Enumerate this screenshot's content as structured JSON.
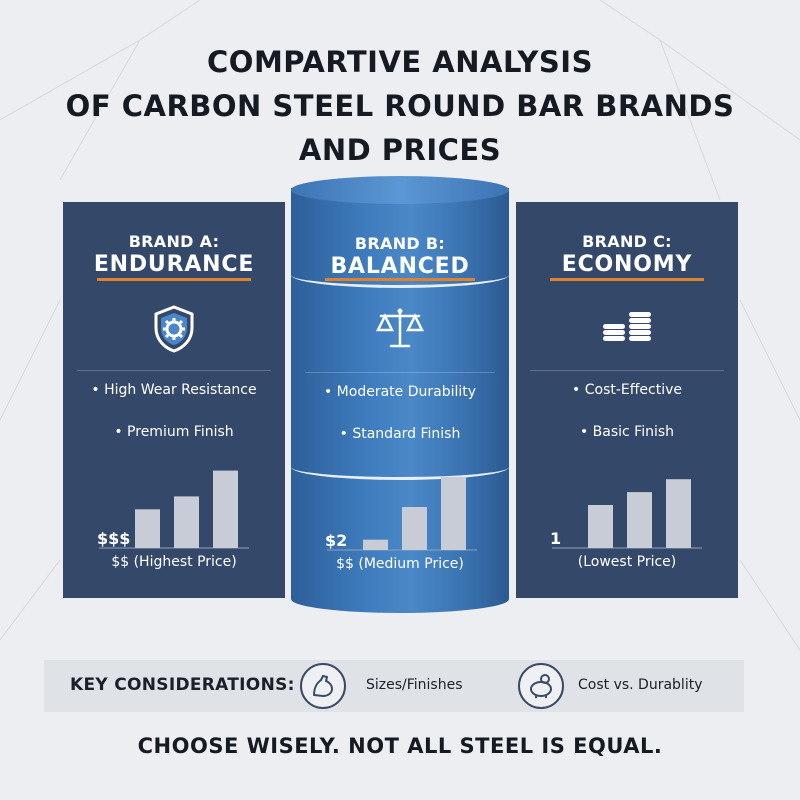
{
  "title_lines": [
    "COMPARTIVE ANALYSIS",
    "OF CARBON STEEL ROUND BAR BRANDS",
    "AND PRICES"
  ],
  "brands": [
    {
      "name": "BRAND A:",
      "tag": "ENDURANCE",
      "icon": "shield-gear-icon",
      "features": [
        "• High Wear Resistance",
        "• Premium Finish"
      ],
      "price_symbol": "$$$",
      "price_label": "$$ (Highest Price)",
      "bar_levels": [
        0.45,
        0.6,
        0.9
      ]
    },
    {
      "name": "BRAND B:",
      "tag": "BALANCED",
      "icon": "scale-icon",
      "features": [
        "• Moderate Durability",
        "• Standard Finish"
      ],
      "price_symbol": "$2",
      "price_label": "$$ (Medium Price)",
      "bar_levels": [
        0.12,
        0.5,
        0.85
      ]
    },
    {
      "name": "BRAND C:",
      "tag": "ECONOMY",
      "icon": "coin-stacks-icon",
      "features": [
        "• Cost-Effective",
        "• Basic Finish"
      ],
      "price_symbol": "1",
      "price_label": "(Lowest Price)",
      "bar_levels": [
        0.5,
        0.65,
        0.8
      ]
    }
  ],
  "key_considerations": {
    "label": "KEY CONSIDERATIONS:",
    "items": [
      {
        "icon": "flexed-arm-icon",
        "text": "Sizes/Finishes"
      },
      {
        "icon": "piggy-bank-icon",
        "text": "Cost vs. Durablity"
      }
    ]
  },
  "footer": "CHOOSE WISELY. NOT ALL STEEL IS EQUAL.",
  "colors": {
    "background": "#eceef1",
    "panel": "#34496a",
    "cylinder": "#3f7cbd",
    "accent_underline": "#e0822b",
    "bars": "#c7ccd6"
  }
}
